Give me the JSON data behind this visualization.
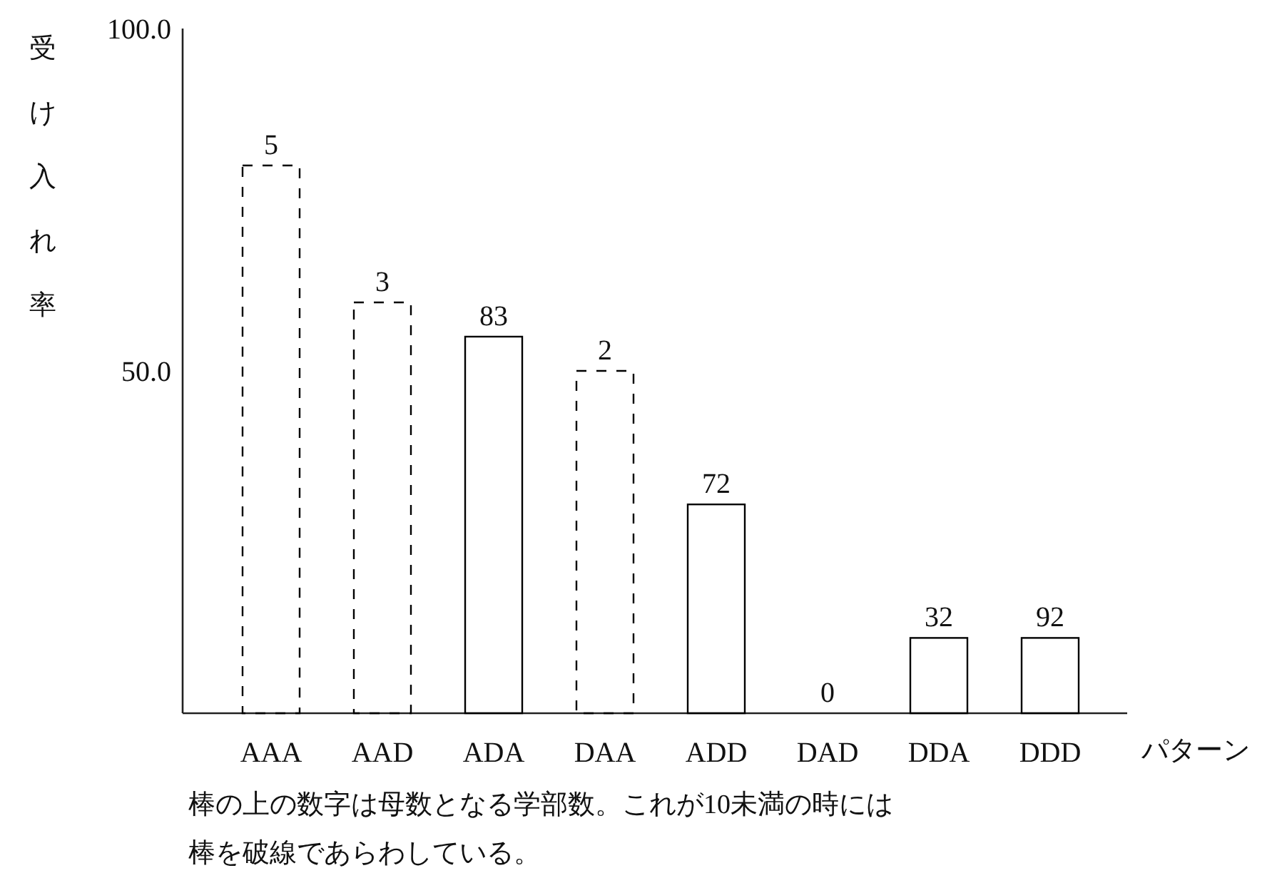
{
  "chart_data": {
    "type": "bar",
    "ylabel": "受け入れ率",
    "xlabel": "パターン",
    "categories": [
      "AAA",
      "AAD",
      "ADA",
      "DAA",
      "ADD",
      "DAD",
      "DDA",
      "DDD"
    ],
    "series": [
      {
        "color": "#000000",
        "line_style": "dashed",
        "values": [
          80,
          60,
          null,
          50,
          null,
          null,
          null,
          null
        ]
      },
      {
        "color": "#000000",
        "line_style": "solid",
        "values": [
          null,
          null,
          55,
          null,
          30.5,
          0,
          11,
          11
        ]
      }
    ],
    "ylim": [
      0,
      100
    ],
    "yticks": [
      {
        "value": 50,
        "label": "50.0"
      },
      {
        "value": 100,
        "label": "100.0"
      }
    ],
    "annotations": [
      {
        "text": "5",
        "x": "AAA",
        "y": 80
      },
      {
        "text": "3",
        "x": "AAD",
        "y": 60
      },
      {
        "text": "83",
        "x": "ADA",
        "y": 55
      },
      {
        "text": "2",
        "x": "DAA",
        "y": 50
      },
      {
        "text": "72",
        "x": "ADD",
        "y": 30.5
      },
      {
        "text": "0",
        "x": "DAD",
        "y": 0
      },
      {
        "text": "32",
        "x": "DDA",
        "y": 11
      },
      {
        "text": "92",
        "x": "DDD",
        "y": 11
      },
      "棒の上の数字は母数となる学部数。これが10未満の時には",
      "棒を破線であらわしている。"
    ]
  }
}
